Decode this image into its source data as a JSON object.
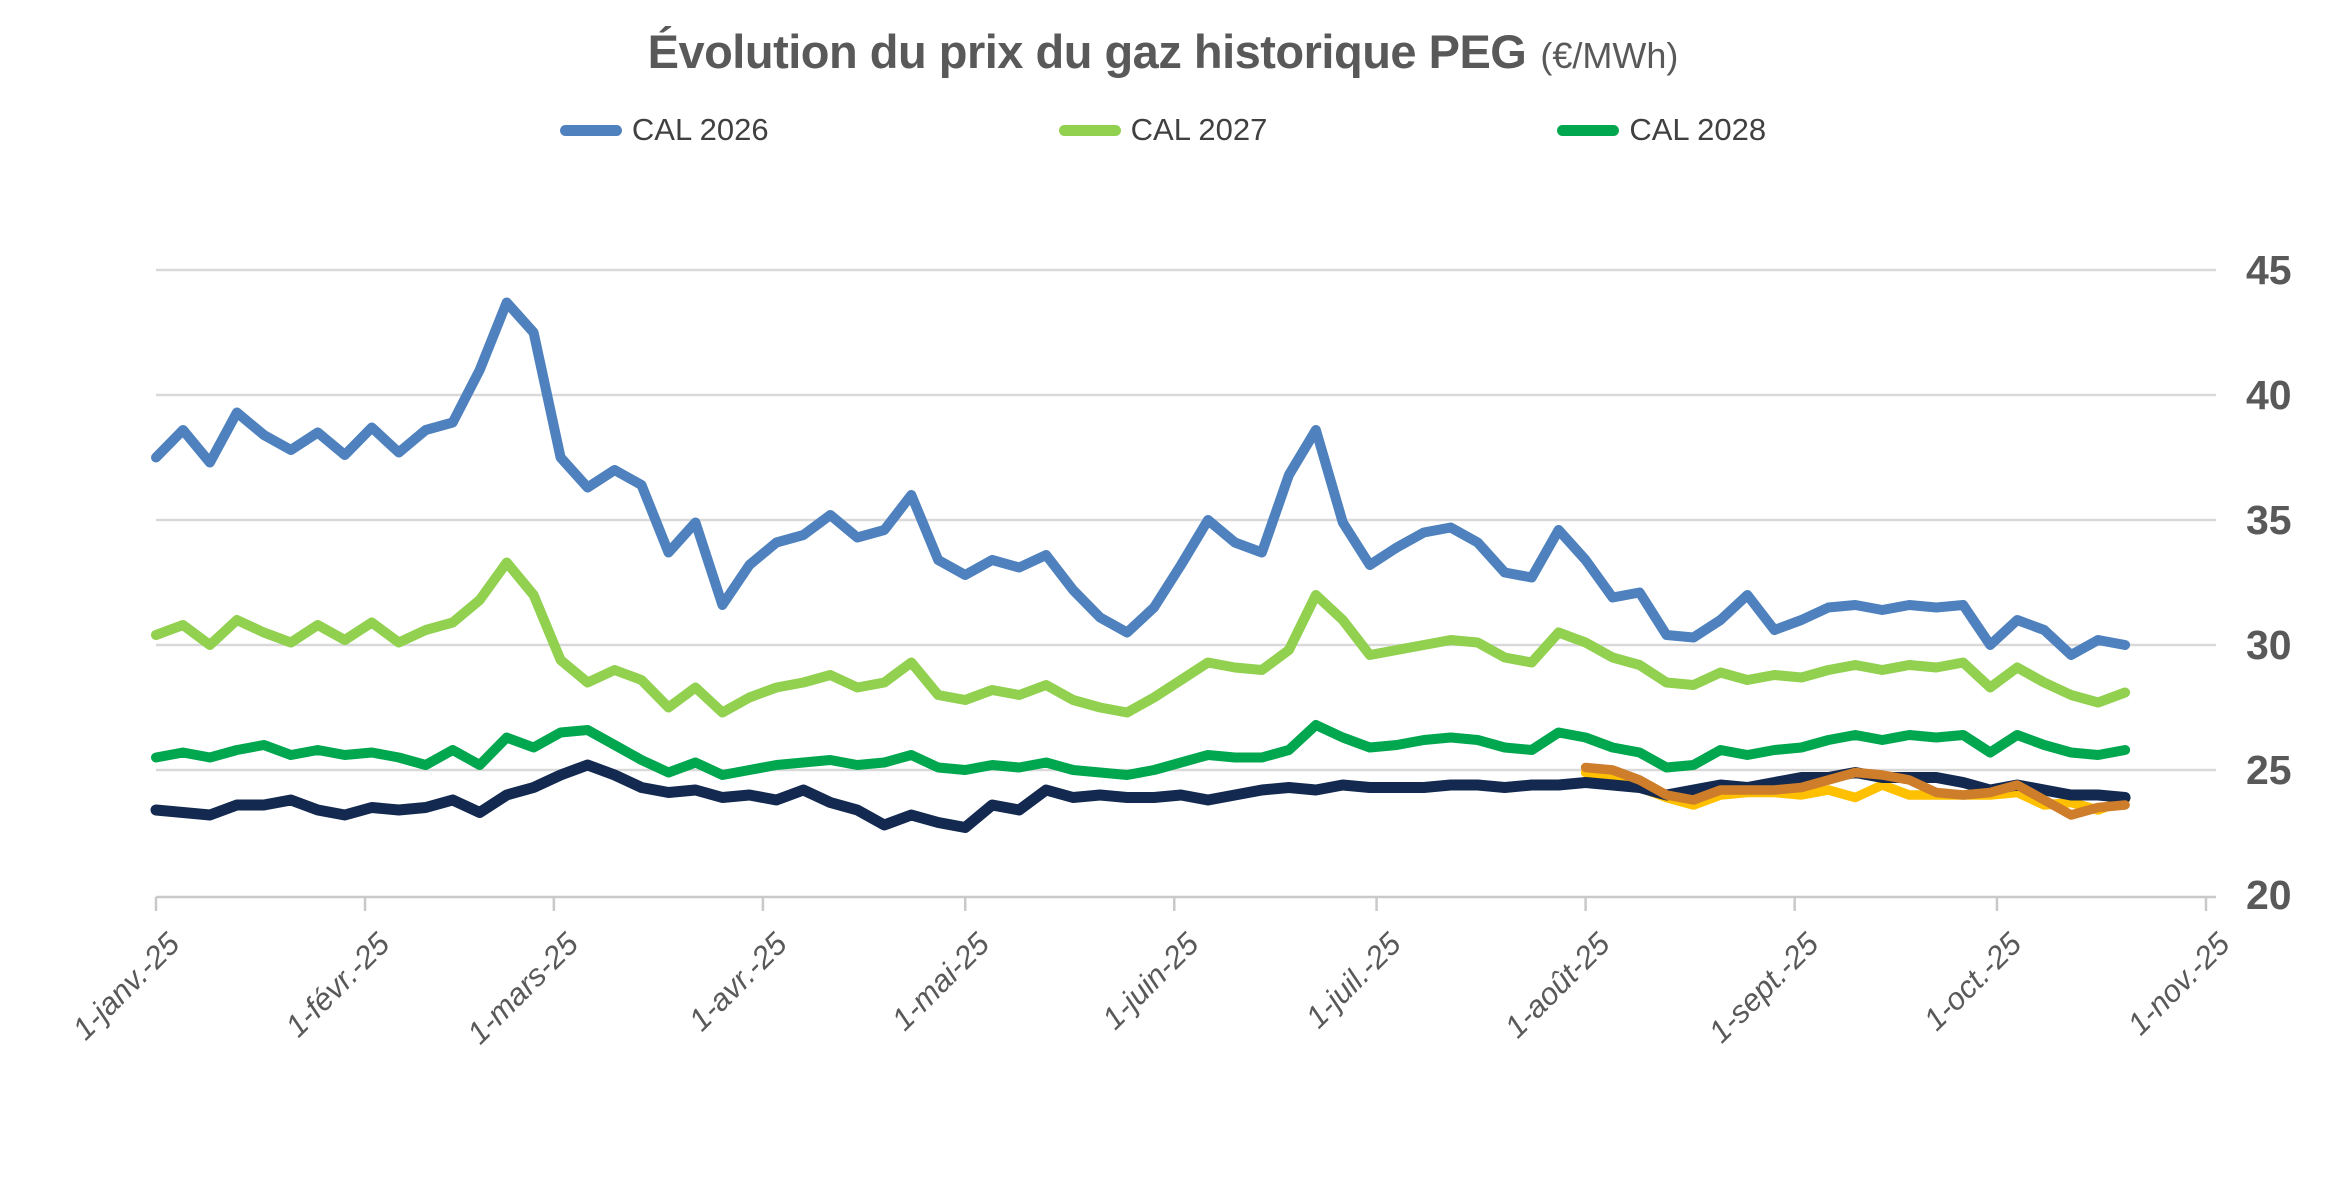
{
  "title": {
    "main": "Évolution du prix du gaz historique PEG",
    "unit": "(€/MWh)"
  },
  "chart_data": {
    "type": "line",
    "title": "Évolution du prix du gaz historique PEG (€/MWh)",
    "legend_position": "top-center",
    "grid": "horizontal",
    "colors": {
      "grid": "#D9D9D9",
      "axis": "#C9C9C9",
      "labels": "#595959",
      "legend_text": "#404040",
      "title": "#595959"
    },
    "x_axis": {
      "tick_labels": [
        "1-janv.-25",
        "1-févr.-25",
        "1-mars-25",
        "1-avr.-25",
        "1-mai-25",
        "1-juin-25",
        "1-juil.-25",
        "1-août-25",
        "1-sept.-25",
        "1-oct.-25",
        "1-nov.-25"
      ],
      "tick_days": [
        0,
        31,
        59,
        90,
        120,
        151,
        181,
        212,
        243,
        273,
        304
      ],
      "span_days": 304
    },
    "y_axis": {
      "ticks": [
        20,
        25,
        30,
        35,
        40,
        45
      ],
      "min": 20,
      "max": 45
    },
    "sample_step_days": 4,
    "series": [
      {
        "name": "CAL 2026",
        "color": "#4E81BD",
        "stroke_width": 10,
        "in_legend": true,
        "values": [
          37.5,
          38.6,
          37.3,
          39.3,
          38.4,
          37.8,
          38.5,
          37.6,
          38.7,
          37.7,
          38.6,
          38.9,
          41.0,
          43.7,
          42.5,
          37.5,
          36.3,
          37.0,
          36.4,
          33.7,
          34.9,
          31.6,
          33.2,
          34.1,
          34.4,
          35.2,
          34.3,
          34.6,
          36.0,
          33.4,
          32.8,
          33.4,
          33.1,
          33.6,
          32.2,
          31.1,
          30.5,
          31.5,
          33.2,
          35.0,
          34.1,
          33.7,
          36.8,
          38.6,
          34.9,
          33.2,
          33.9,
          34.5,
          34.7,
          34.1,
          32.9,
          32.7,
          34.6,
          33.4,
          31.9,
          32.1,
          30.4,
          30.3,
          31.0,
          32.0,
          30.6,
          31.0,
          31.5,
          31.6,
          31.4,
          31.6,
          31.5,
          31.6,
          30.0,
          31.0,
          30.6,
          29.6,
          30.2,
          30.0
        ]
      },
      {
        "name": "CAL 2027",
        "color": "#92D050",
        "stroke_width": 10,
        "in_legend": true,
        "values": [
          30.4,
          30.8,
          30.0,
          31.0,
          30.5,
          30.1,
          30.8,
          30.2,
          30.9,
          30.1,
          30.6,
          30.9,
          31.8,
          33.3,
          32.0,
          29.4,
          28.5,
          29.0,
          28.6,
          27.5,
          28.3,
          27.3,
          27.9,
          28.3,
          28.5,
          28.8,
          28.3,
          28.5,
          29.3,
          28.0,
          27.8,
          28.2,
          28.0,
          28.4,
          27.8,
          27.5,
          27.3,
          27.9,
          28.6,
          29.3,
          29.1,
          29.0,
          29.8,
          32.0,
          31.0,
          29.6,
          29.8,
          30.0,
          30.2,
          30.1,
          29.5,
          29.3,
          30.5,
          30.1,
          29.5,
          29.2,
          28.5,
          28.4,
          28.9,
          28.6,
          28.8,
          28.7,
          29.0,
          29.2,
          29.0,
          29.2,
          29.1,
          29.3,
          28.3,
          29.1,
          28.5,
          28.0,
          27.7,
          28.1
        ]
      },
      {
        "name": "CAL 2028",
        "color": "#00A74F",
        "stroke_width": 10,
        "in_legend": true,
        "values": [
          25.5,
          25.7,
          25.5,
          25.8,
          26.0,
          25.6,
          25.8,
          25.6,
          25.7,
          25.5,
          25.2,
          25.8,
          25.2,
          26.3,
          25.9,
          26.5,
          26.6,
          26.0,
          25.4,
          24.9,
          25.3,
          24.8,
          25.0,
          25.2,
          25.3,
          25.4,
          25.2,
          25.3,
          25.6,
          25.1,
          25.0,
          25.2,
          25.1,
          25.3,
          25.0,
          24.9,
          24.8,
          25.0,
          25.3,
          25.6,
          25.5,
          25.5,
          25.8,
          26.8,
          26.3,
          25.9,
          26.0,
          26.2,
          26.3,
          26.2,
          25.9,
          25.8,
          26.5,
          26.3,
          25.9,
          25.7,
          25.1,
          25.2,
          25.8,
          25.6,
          25.8,
          25.9,
          26.2,
          26.4,
          26.2,
          26.4,
          26.3,
          26.4,
          25.7,
          26.4,
          26.0,
          25.7,
          25.6,
          25.8
        ]
      },
      {
        "name": "",
        "color": "#13294F",
        "stroke_width": 11,
        "in_legend": false,
        "values": [
          23.4,
          23.3,
          23.2,
          23.6,
          23.6,
          23.8,
          23.4,
          23.2,
          23.5,
          23.4,
          23.5,
          23.8,
          23.3,
          24.0,
          24.3,
          24.8,
          25.2,
          24.8,
          24.3,
          24.1,
          24.2,
          23.9,
          24.0,
          23.8,
          24.2,
          23.7,
          23.4,
          22.8,
          23.2,
          22.9,
          22.7,
          23.6,
          23.4,
          24.2,
          23.9,
          24.0,
          23.9,
          23.9,
          24.0,
          23.8,
          24.0,
          24.2,
          24.3,
          24.2,
          24.4,
          24.3,
          24.3,
          24.3,
          24.4,
          24.4,
          24.3,
          24.4,
          24.4,
          24.5,
          24.4,
          24.3,
          24.0,
          24.2,
          24.4,
          24.3,
          24.5,
          24.7,
          24.7,
          24.9,
          24.7,
          24.7,
          24.7,
          24.5,
          24.2,
          24.4,
          24.2,
          24.0,
          24.0,
          23.9
        ]
      },
      {
        "name": "",
        "color": "#CE7D2B",
        "stroke_width": 9.5,
        "in_legend": false,
        "values": [
          null,
          null,
          null,
          null,
          null,
          null,
          null,
          null,
          null,
          null,
          null,
          null,
          null,
          null,
          null,
          null,
          null,
          null,
          null,
          null,
          null,
          null,
          null,
          null,
          null,
          null,
          null,
          null,
          null,
          null,
          null,
          null,
          null,
          null,
          null,
          null,
          null,
          null,
          null,
          null,
          null,
          null,
          null,
          null,
          null,
          null,
          null,
          null,
          null,
          null,
          null,
          null,
          null,
          25.1,
          25.0,
          24.6,
          24.0,
          23.8,
          24.2,
          24.2,
          24.2,
          24.3,
          24.6,
          24.9,
          24.8,
          24.6,
          24.1,
          24.0,
          24.1,
          24.4,
          23.8,
          23.2,
          23.5,
          23.6
        ]
      },
      {
        "name": "",
        "color": "#FFC000",
        "stroke_width": 9.5,
        "in_legend": false,
        "values": [
          null,
          null,
          null,
          null,
          null,
          null,
          null,
          null,
          null,
          null,
          null,
          null,
          null,
          null,
          null,
          null,
          null,
          null,
          null,
          null,
          null,
          null,
          null,
          null,
          null,
          null,
          null,
          null,
          null,
          null,
          null,
          null,
          null,
          null,
          null,
          null,
          null,
          null,
          null,
          null,
          null,
          null,
          null,
          null,
          null,
          null,
          null,
          null,
          null,
          null,
          null,
          null,
          null,
          24.9,
          24.7,
          24.3,
          23.9,
          23.6,
          24.0,
          24.1,
          24.1,
          24.0,
          24.2,
          23.9,
          24.4,
          24.0,
          24.0,
          24.0,
          24.0,
          24.1,
          23.6,
          23.7,
          23.4,
          23.8
        ]
      }
    ]
  }
}
